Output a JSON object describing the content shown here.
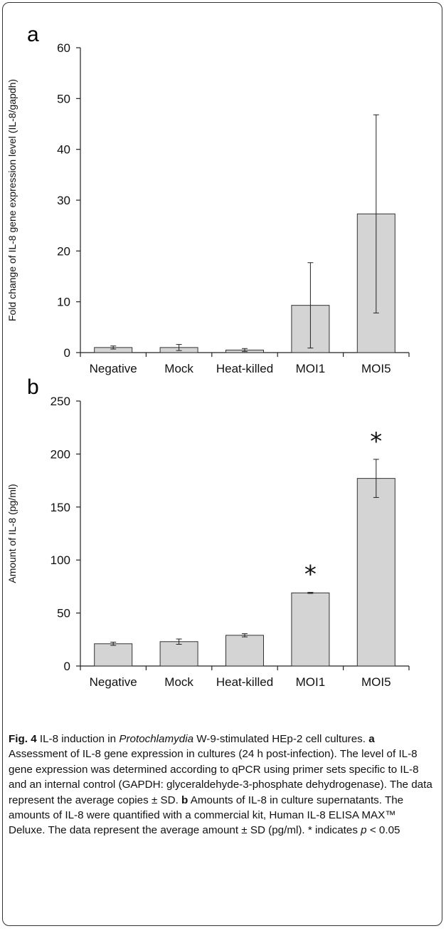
{
  "chart_data": [
    {
      "type": "bar",
      "panel": "a",
      "categories": [
        "Negative",
        "Mock",
        "Heat-killed",
        "MOI1",
        "MOI5"
      ],
      "values": [
        1.0,
        1.0,
        0.5,
        9.3,
        27.3
      ],
      "errors": [
        0.3,
        0.6,
        0.3,
        8.4,
        19.5
      ],
      "ylabel": "Fold change of IL-8 gene expression level (IL-8/gapdh)",
      "ylim": [
        0,
        60
      ],
      "yticks": [
        "0",
        "10",
        "20",
        "30",
        "40",
        "50",
        "60"
      ],
      "bar_color": "#d4d4d4",
      "significant": [
        false,
        false,
        false,
        false,
        false
      ]
    },
    {
      "type": "bar",
      "panel": "b",
      "categories": [
        "Negative",
        "Mock",
        "Heat-killed",
        "MOI1",
        "MOI5"
      ],
      "values": [
        21,
        23,
        29,
        69,
        177
      ],
      "errors": [
        1.5,
        2.5,
        1.5,
        0.5,
        18
      ],
      "ylabel": "Amount of IL-8 (pg/ml)",
      "ylim": [
        0,
        250
      ],
      "yticks": [
        "0",
        "50",
        "100",
        "150",
        "200",
        "250"
      ],
      "bar_color": "#d4d4d4",
      "significant": [
        false,
        false,
        false,
        true,
        true
      ],
      "significance_marker": "*"
    }
  ],
  "caption": {
    "fig_label": "Fig. 4",
    "t1": " IL-8 induction in ",
    "organism": "Protochlamydia",
    "t2": " W-9-stimulated HEp-2 cell cultures. ",
    "a_label": "a",
    "t3": " Assessment of IL-8 gene expression in cultures (24 h post-infection). The level of IL-8 gene expression was determined according to qPCR using primer sets specific to IL-8 and an internal control (GAPDH: glyceraldehyde-3-phosphate dehydrogenase). The data represent the average copies ± SD. ",
    "b_label": "b",
    "t4": " Amounts of IL-8 in culture supernatants. The amounts of IL-8 were quantified with a commercial kit, Human IL-8 ELISA MAX™ Deluxe. The data represent the average amount ± SD (pg/ml). * indicates ",
    "p": "p",
    "t5": " < 0.05"
  }
}
